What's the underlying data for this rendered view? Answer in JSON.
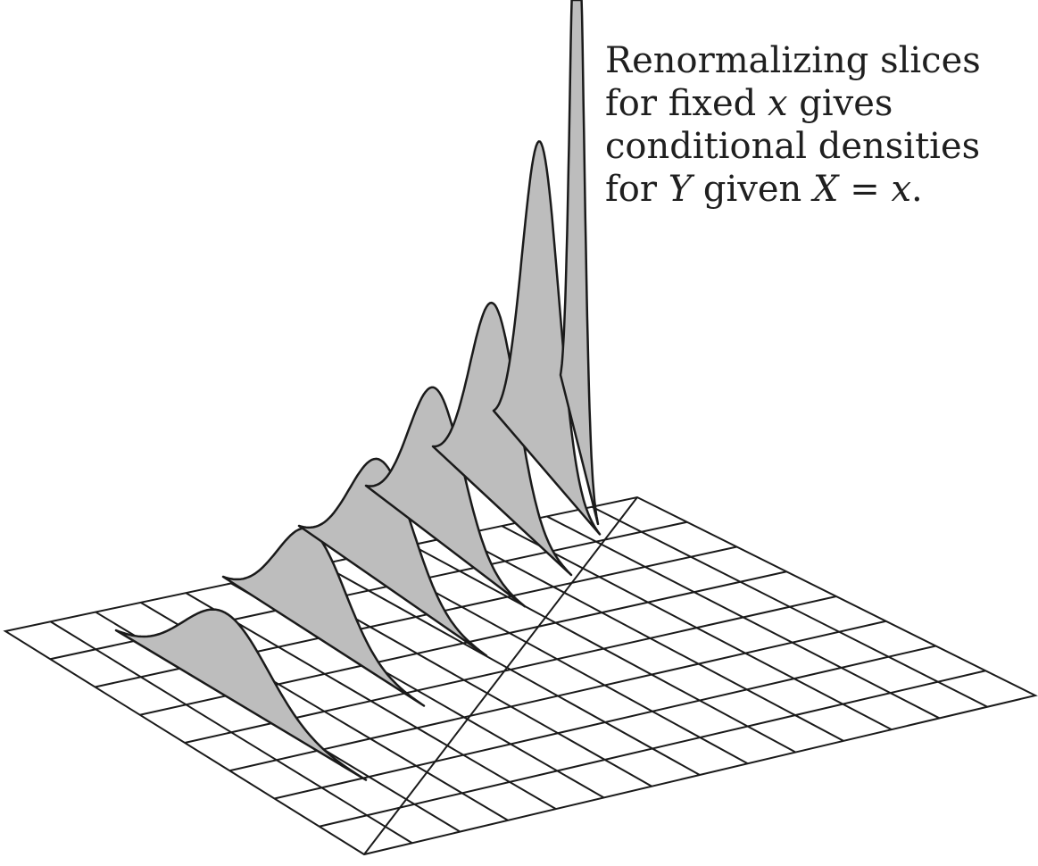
{
  "caption": {
    "line1": "Renormalizing slices",
    "line2_a": "for fixed ",
    "line2_var": "x",
    "line2_b": " gives",
    "line3": "conditional densities",
    "line4_a": "for ",
    "line4_var_y": "Y",
    "line4_b": " given ",
    "line4_var_x": "X",
    "line4_c": " = ",
    "line4_var_x2": "x",
    "line4_d": "."
  },
  "colors": {
    "slice_fill": "#bdbdbd",
    "line": "#1a1a1a",
    "grid_fill": "#ffffff"
  }
}
